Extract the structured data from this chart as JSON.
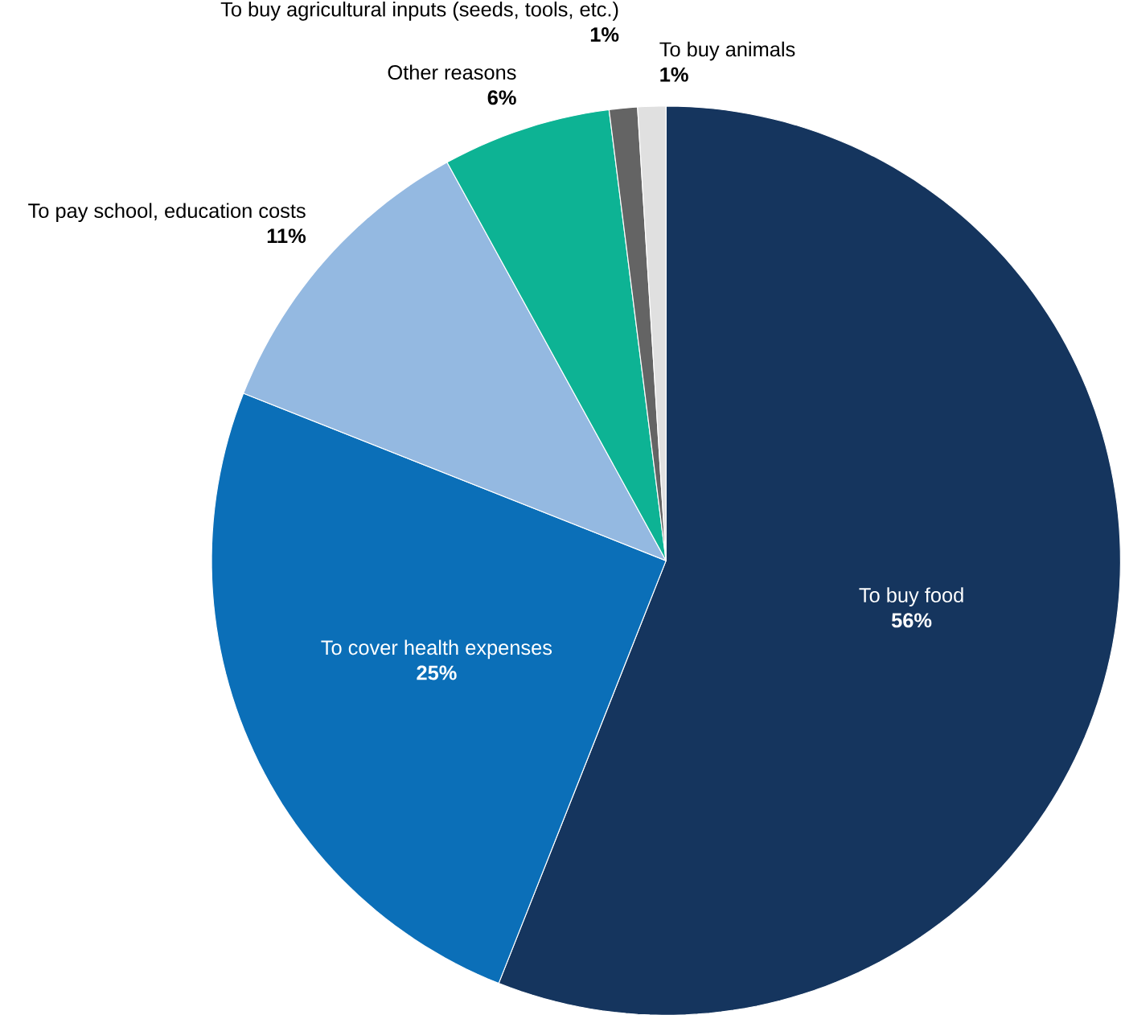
{
  "chart_data": {
    "type": "pie",
    "categories": [
      "To buy food",
      "To cover health expenses",
      "To pay school, education costs",
      "Other reasons",
      "To buy agricultural inputs (seeds, tools, etc.)",
      "To buy animals"
    ],
    "values": [
      56,
      25,
      11,
      6,
      1,
      1
    ],
    "colors": [
      "#15355e",
      "#0b6fb8",
      "#94b9e1",
      "#0db394",
      "#646464",
      "#e0e0e0"
    ],
    "value_labels": [
      "56%",
      "25%",
      "11%",
      "6%",
      "1%",
      "1%"
    ]
  }
}
